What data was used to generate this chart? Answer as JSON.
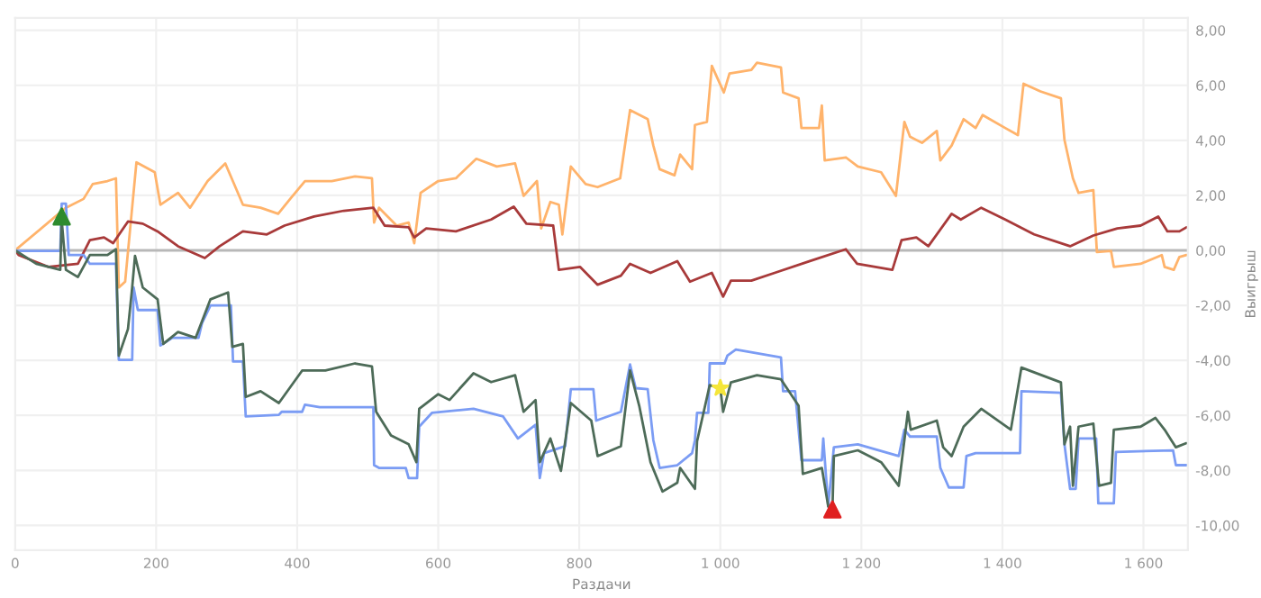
{
  "chart_data": {
    "type": "line",
    "xlabel": "Раздачи",
    "ylabel": "Выигрыш",
    "xlim": [
      0,
      1663
    ],
    "ylim": [
      -10.9,
      8.45
    ],
    "xticks": [
      0,
      200,
      400,
      600,
      800,
      {
        "value": 1000,
        "label": "1 000"
      },
      {
        "value": 1200,
        "label": "1 200"
      },
      {
        "value": 1400,
        "label": "1 400"
      },
      {
        "value": 1600,
        "label": "1 600"
      }
    ],
    "yticks": [
      {
        "value": 8,
        "label": "8,00"
      },
      {
        "value": 6,
        "label": "6,00"
      },
      {
        "value": 4,
        "label": "4,00"
      },
      {
        "value": 2,
        "label": "2,00"
      },
      {
        "value": 0,
        "label": "0,00"
      },
      {
        "value": -2,
        "label": "-2,00"
      },
      {
        "value": -4,
        "label": "-4,00"
      },
      {
        "value": -6,
        "label": "-6,00"
      },
      {
        "value": -8,
        "label": "-8,00"
      },
      {
        "value": -10,
        "label": "-10,00"
      }
    ],
    "grid": true,
    "marker": "none",
    "line_style": "solid",
    "ref_lines": [
      {
        "axis": "y",
        "value": 0,
        "color": "#b8b8b8"
      }
    ],
    "series": [
      {
        "color": "#ffb36b",
        "x": [
          0,
          72,
          97,
          110,
          131,
          143,
          147,
          156,
          172,
          198,
          206,
          231,
          248,
          273,
          298,
          323,
          348,
          373,
          390,
          411,
          449,
          482,
          506,
          509,
          516,
          541,
          558,
          566,
          575,
          600,
          625,
          654,
          683,
          709,
          721,
          740,
          746,
          759,
          771,
          776,
          788,
          809,
          826,
          858,
          872,
          897,
          905,
          914,
          935,
          943,
          960,
          964,
          981,
          988,
          1005,
          1013,
          1044,
          1052,
          1086,
          1089,
          1111,
          1115,
          1140,
          1144,
          1148,
          1178,
          1195,
          1228,
          1249,
          1261,
          1269,
          1286,
          1307,
          1312,
          1328,
          1345,
          1362,
          1372,
          1404,
          1422,
          1430,
          1454,
          1483,
          1488,
          1500,
          1508,
          1529,
          1534,
          1554,
          1558,
          1596,
          1626,
          1630,
          1643,
          1651,
          1661
        ],
        "values": [
          0,
          1.55,
          1.87,
          2.41,
          2.52,
          2.62,
          -1.35,
          -1.14,
          3.2,
          2.84,
          1.66,
          2.09,
          1.55,
          2.52,
          3.16,
          1.66,
          1.55,
          1.33,
          1.87,
          2.52,
          2.52,
          2.69,
          2.62,
          1.01,
          1.55,
          0.9,
          1.01,
          0.26,
          2.09,
          2.52,
          2.62,
          3.33,
          3.05,
          3.16,
          1.98,
          2.52,
          0.8,
          1.76,
          1.66,
          0.58,
          3.05,
          2.41,
          2.3,
          2.62,
          5.1,
          4.77,
          3.81,
          2.95,
          2.73,
          3.48,
          2.95,
          4.56,
          4.67,
          6.71,
          5.74,
          6.43,
          6.56,
          6.82,
          6.65,
          5.74,
          5.53,
          4.45,
          4.45,
          5.27,
          3.27,
          3.38,
          3.05,
          2.84,
          1.98,
          4.67,
          4.13,
          3.91,
          4.34,
          3.27,
          3.81,
          4.77,
          4.45,
          4.92,
          4.45,
          4.19,
          6.06,
          5.78,
          5.53,
          4.02,
          2.62,
          2.09,
          2.19,
          -0.06,
          -0.02,
          -0.6,
          -0.49,
          -0.17,
          -0.6,
          -0.71,
          -0.24,
          -0.17
        ]
      },
      {
        "color": "#a83a3a",
        "x": [
          0,
          5,
          47,
          89,
          106,
          126,
          139,
          160,
          181,
          202,
          231,
          269,
          290,
          323,
          357,
          382,
          424,
          466,
          508,
          524,
          558,
          566,
          583,
          625,
          675,
          707,
          725,
          763,
          771,
          801,
          826,
          859,
          872,
          901,
          939,
          957,
          988,
          1004,
          1015,
          1044,
          1077,
          1127,
          1178,
          1194,
          1244,
          1257,
          1278,
          1295,
          1328,
          1341,
          1370,
          1404,
          1445,
          1496,
          1529,
          1563,
          1596,
          1621,
          1634,
          1651,
          1661
        ],
        "values": [
          0,
          -0.17,
          -0.6,
          -0.49,
          0.37,
          0.47,
          0.26,
          1.05,
          0.97,
          0.69,
          0.15,
          -0.28,
          0.15,
          0.69,
          0.58,
          0.9,
          1.23,
          1.44,
          1.55,
          0.9,
          0.84,
          0.47,
          0.8,
          0.69,
          1.12,
          1.59,
          0.97,
          0.9,
          -0.71,
          -0.6,
          -1.25,
          -0.92,
          -0.49,
          -0.82,
          -0.39,
          -1.14,
          -0.82,
          -1.68,
          -1.1,
          -1.1,
          -0.82,
          -0.39,
          0.04,
          -0.49,
          -0.71,
          0.37,
          0.47,
          0.15,
          1.33,
          1.12,
          1.55,
          1.12,
          0.58,
          0.15,
          0.54,
          0.8,
          0.9,
          1.23,
          0.69,
          0.69,
          0.84
        ]
      },
      {
        "color": "#7b9cf4",
        "x": [
          0,
          5,
          64,
          66,
          72,
          76,
          97,
          106,
          143,
          147,
          166,
          168,
          174,
          202,
          206,
          223,
          260,
          265,
          277,
          306,
          309,
          323,
          327,
          374,
          378,
          407,
          411,
          432,
          508,
          509,
          516,
          554,
          558,
          570,
          573,
          591,
          650,
          692,
          713,
          738,
          744,
          750,
          780,
          788,
          820,
          824,
          859,
          872,
          880,
          897,
          905,
          914,
          939,
          960,
          964,
          967,
          983,
          985,
          1006,
          1010,
          1022,
          1086,
          1089,
          1106,
          1115,
          1144,
          1146,
          1153,
          1161,
          1195,
          1253,
          1261,
          1269,
          1307,
          1312,
          1324,
          1345,
          1349,
          1362,
          1425,
          1427,
          1483,
          1488,
          1496,
          1504,
          1508,
          1533,
          1536,
          1558,
          1561,
          1642,
          1646,
          1661
        ],
        "values": [
          0,
          -0.02,
          -0.02,
          1.7,
          1.7,
          -0.17,
          -0.17,
          -0.49,
          -0.49,
          -3.98,
          -3.98,
          -1.35,
          -2.17,
          -2.17,
          -3.46,
          -3.18,
          -3.18,
          -2.65,
          -2.0,
          -2.0,
          -4.04,
          -4.04,
          -6.04,
          -5.98,
          -5.87,
          -5.87,
          -5.61,
          -5.7,
          -5.7,
          -7.81,
          -7.91,
          -7.91,
          -8.28,
          -8.28,
          -6.41,
          -5.91,
          -5.76,
          -6.04,
          -6.84,
          -6.34,
          -8.28,
          -7.37,
          -7.12,
          -5.05,
          -5.05,
          -6.19,
          -5.87,
          -4.15,
          -5.01,
          -5.05,
          -6.9,
          -7.91,
          -7.81,
          -7.37,
          -6.9,
          -5.91,
          -5.91,
          -4.11,
          -4.11,
          -3.83,
          -3.61,
          -3.89,
          -5.12,
          -5.12,
          -7.63,
          -7.63,
          -6.84,
          -9.31,
          -7.16,
          -7.05,
          -7.48,
          -6.52,
          -6.77,
          -6.77,
          -7.91,
          -8.62,
          -8.62,
          -7.48,
          -7.37,
          -7.37,
          -5.12,
          -5.18,
          -7.05,
          -8.67,
          -8.67,
          -6.84,
          -6.84,
          -9.2,
          -9.2,
          -7.33,
          -7.27,
          -7.81,
          -7.81
        ]
      },
      {
        "color": "#4d6b58",
        "x": [
          0,
          30,
          64,
          66,
          72,
          89,
          106,
          131,
          143,
          147,
          160,
          166,
          170,
          181,
          202,
          210,
          231,
          256,
          277,
          302,
          308,
          323,
          327,
          348,
          374,
          407,
          440,
          482,
          506,
          512,
          533,
          558,
          569,
          573,
          600,
          616,
          650,
          675,
          709,
          721,
          738,
          744,
          759,
          774,
          788,
          817,
          826,
          859,
          872,
          885,
          901,
          918,
          939,
          943,
          964,
          967,
          985,
          1000,
          1004,
          1015,
          1052,
          1086,
          1111,
          1117,
          1144,
          1153,
          1159,
          1161,
          1195,
          1228,
          1253,
          1266,
          1270,
          1307,
          1316,
          1328,
          1345,
          1370,
          1412,
          1427,
          1483,
          1488,
          1496,
          1500,
          1508,
          1529,
          1537,
          1554,
          1558,
          1596,
          1617,
          1630,
          1646,
          1661
        ],
        "values": [
          0,
          -0.49,
          -0.71,
          1.12,
          -0.71,
          -0.97,
          -0.17,
          -0.17,
          0.04,
          -3.83,
          -2.86,
          -1.35,
          -0.2,
          -1.35,
          -1.78,
          -3.4,
          -2.97,
          -3.18,
          -1.78,
          -1.53,
          -3.51,
          -3.4,
          -5.33,
          -5.12,
          -5.55,
          -4.37,
          -4.37,
          -4.11,
          -4.22,
          -5.87,
          -6.73,
          -7.05,
          -7.7,
          -5.76,
          -5.23,
          -5.44,
          -4.47,
          -4.79,
          -4.54,
          -5.87,
          -5.44,
          -7.7,
          -6.84,
          -8.02,
          -5.55,
          -6.19,
          -7.48,
          -7.12,
          -4.37,
          -5.65,
          -7.7,
          -8.77,
          -8.45,
          -7.91,
          -8.67,
          -6.94,
          -4.9,
          -5.01,
          -5.87,
          -4.8,
          -4.54,
          -4.69,
          -5.65,
          -8.13,
          -7.91,
          -9.31,
          -9.42,
          -7.48,
          -7.27,
          -7.7,
          -8.56,
          -5.87,
          -6.52,
          -6.19,
          -7.16,
          -7.48,
          -6.41,
          -5.76,
          -6.52,
          -4.26,
          -4.8,
          -7.05,
          -6.41,
          -8.56,
          -6.41,
          -6.3,
          -8.56,
          -8.45,
          -6.52,
          -6.41,
          -6.09,
          -6.52,
          -7.16,
          -7.01
        ]
      },
      {
        "type": "scatter",
        "color": "#2e8b2e",
        "marker": "triangle",
        "x": [
          66
        ],
        "values": [
          1.23
        ]
      },
      {
        "type": "scatter",
        "color": "#f5e63a",
        "marker": "star",
        "x": [
          1000
        ],
        "values": [
          -5.01
        ]
      },
      {
        "type": "scatter",
        "color": "#e02020",
        "marker": "triangle",
        "x": [
          1159
        ],
        "values": [
          -9.42
        ]
      }
    ]
  }
}
